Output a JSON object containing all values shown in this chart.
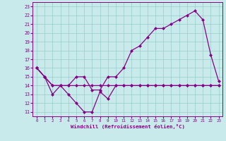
{
  "bg_color": "#c8eaea",
  "grid_color": "#99cccc",
  "line_color": "#880088",
  "xlim": [
    -0.5,
    23.5
  ],
  "ylim": [
    10.5,
    23.5
  ],
  "x_ticks": [
    0,
    1,
    2,
    3,
    4,
    5,
    6,
    7,
    8,
    9,
    10,
    11,
    12,
    13,
    14,
    15,
    16,
    17,
    18,
    19,
    20,
    21,
    22,
    23
  ],
  "y_ticks": [
    11,
    12,
    13,
    14,
    15,
    16,
    17,
    18,
    19,
    20,
    21,
    22,
    23
  ],
  "xlabel": "Windchill (Refroidissement éolien,°C)",
  "line1_x": [
    0,
    1,
    2,
    3,
    4,
    5,
    6,
    7,
    8,
    9,
    10,
    11,
    12,
    13,
    14,
    15,
    16,
    17,
    18,
    19,
    20,
    21,
    22,
    23
  ],
  "line1_y": [
    16,
    15,
    13,
    14,
    13,
    12,
    11,
    11,
    13.3,
    12.5,
    14,
    14,
    14,
    14,
    14,
    14,
    14,
    14,
    14,
    14,
    14,
    14,
    14,
    14
  ],
  "line2_x": [
    0,
    1,
    2,
    3,
    4,
    5,
    6,
    7,
    8,
    9,
    10,
    11,
    12,
    13,
    14,
    15,
    16,
    17,
    18,
    19,
    20,
    21,
    22,
    23
  ],
  "line2_y": [
    16,
    15,
    14,
    14,
    14,
    14,
    14,
    14,
    14,
    14,
    14,
    14,
    14,
    14,
    14,
    14,
    14,
    14,
    14,
    14,
    14,
    14,
    14,
    14
  ],
  "line3_x": [
    0,
    1,
    2,
    3,
    4,
    5,
    6,
    7,
    8,
    9,
    10,
    11,
    12,
    13,
    14,
    15,
    16,
    17,
    18,
    19,
    20,
    21,
    22,
    23
  ],
  "line3_y": [
    16,
    15,
    14,
    14,
    14,
    15,
    15,
    13.5,
    13.5,
    15,
    15,
    16,
    18,
    18.5,
    19.5,
    20.5,
    20.5,
    21,
    21.5,
    22,
    22.5,
    21.5,
    17.5,
    14.5
  ]
}
